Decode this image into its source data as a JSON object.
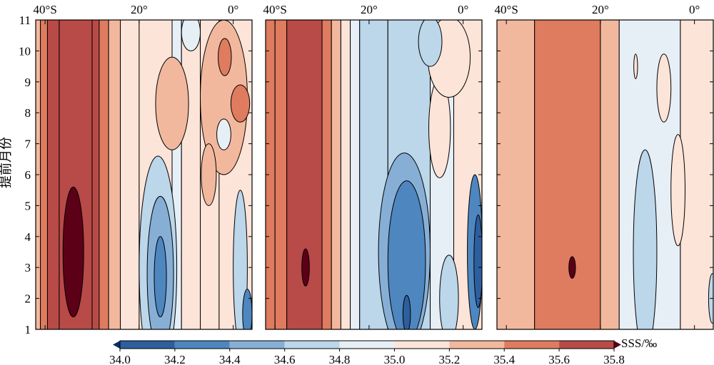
{
  "chart_data": {
    "type": "heatmap",
    "subtype": "filled-contour",
    "panels": [
      {
        "x_tick_labels": [
          "40°S",
          "20°",
          "0°"
        ],
        "x_tick_values": [
          -40,
          -20,
          0
        ],
        "xlim": [
          -42,
          4
        ],
        "y_tick_labels": [
          "1",
          "2",
          "3",
          "4",
          "5",
          "6",
          "7",
          "8",
          "9",
          "10",
          "11"
        ],
        "ylim": [
          1,
          11
        ],
        "ylabel": "提前月份",
        "bands": [
          {
            "x": [
              -42.0,
              -41.0
            ],
            "sss": 35.3
          },
          {
            "x": [
              -41.0,
              -39.5
            ],
            "sss": 35.5
          },
          {
            "x": [
              -39.5,
              -37.0
            ],
            "sss": 35.6
          },
          {
            "x": [
              -37.0,
              -30.0
            ],
            "sss": 35.7
          },
          {
            "x": [
              -30.0,
              -28.5
            ],
            "sss": 35.6
          },
          {
            "x": [
              -28.5,
              -26.5
            ],
            "sss": 35.5
          },
          {
            "x": [
              -26.5,
              -24.0
            ],
            "sss": 35.3
          },
          {
            "x": [
              -24.0,
              -20.0
            ],
            "sss": 35.1
          },
          {
            "x": [
              -20.0,
              -13.0
            ],
            "sss": 35.0
          },
          {
            "x": [
              -13.0,
              -11.0
            ],
            "sss": 34.9
          },
          {
            "x": [
              -11.0,
              -7.0
            ],
            "sss": 35.0
          },
          {
            "x": [
              -7.0,
              -3.0
            ],
            "sss": 35.1
          },
          {
            "x": [
              -3.0,
              4.0
            ],
            "sss": 35.1
          }
        ],
        "blobs": [
          {
            "cx": -34.0,
            "cy": 3.5,
            "rx": 2.2,
            "ry": 2.1,
            "sss": 35.8
          },
          {
            "cx": -16.0,
            "cy": 3.0,
            "rx": 4.0,
            "ry": 3.6,
            "sss": 34.7
          },
          {
            "cx": -15.5,
            "cy": 2.8,
            "rx": 2.8,
            "ry": 2.5,
            "sss": 34.5
          },
          {
            "cx": -15.5,
            "cy": 2.7,
            "rx": 1.3,
            "ry": 1.3,
            "sss": 34.3
          },
          {
            "cx": -9.0,
            "cy": 10.6,
            "rx": 2.0,
            "ry": 0.6,
            "sss": 34.9
          },
          {
            "cx": -13.0,
            "cy": 8.3,
            "rx": 3.5,
            "ry": 1.5,
            "sss": 35.2
          },
          {
            "cx": -2.0,
            "cy": 8.5,
            "rx": 5.0,
            "ry": 2.5,
            "sss": 35.3
          },
          {
            "cx": -1.8,
            "cy": 9.8,
            "rx": 1.4,
            "ry": 0.6,
            "sss": 35.4
          },
          {
            "cx": 1.5,
            "cy": 8.3,
            "rx": 2.0,
            "ry": 0.6,
            "sss": 35.4
          },
          {
            "cx": -5.2,
            "cy": 6.0,
            "rx": 1.6,
            "ry": 1.0,
            "sss": 35.3
          },
          {
            "cx": -2.0,
            "cy": 7.3,
            "rx": 1.5,
            "ry": 0.5,
            "sss": 34.9
          },
          {
            "cx": 1.5,
            "cy": 3.0,
            "rx": 1.5,
            "ry": 2.5,
            "sss": 34.6
          },
          {
            "cx": 3.0,
            "cy": 1.5,
            "rx": 1.0,
            "ry": 0.8,
            "sss": 34.3
          }
        ]
      },
      {
        "x_tick_labels": [
          "40°S",
          "20°",
          "0°"
        ],
        "x_tick_values": [
          -40,
          -20,
          0
        ],
        "xlim": [
          -42,
          4
        ],
        "y_tick_labels": [],
        "ylim": [
          1,
          11
        ],
        "bands": [
          {
            "x": [
              -42.0,
              -40.0
            ],
            "sss": 35.4
          },
          {
            "x": [
              -40.0,
              -37.5
            ],
            "sss": 35.5
          },
          {
            "x": [
              -37.5,
              -30.0
            ],
            "sss": 35.7
          },
          {
            "x": [
              -30.0,
              -28.0
            ],
            "sss": 35.5
          },
          {
            "x": [
              -28.0,
              -26.0
            ],
            "sss": 35.3
          },
          {
            "x": [
              -26.0,
              -24.0
            ],
            "sss": 35.1
          },
          {
            "x": [
              -24.0,
              -22.0
            ],
            "sss": 34.9
          },
          {
            "x": [
              -22.0,
              -16.0
            ],
            "sss": 34.7
          },
          {
            "x": [
              -16.0,
              -7.0
            ],
            "sss": 34.7
          },
          {
            "x": [
              -7.0,
              -2.0
            ],
            "sss": 34.9
          },
          {
            "x": [
              -2.0,
              4.0
            ],
            "sss": 35.0
          }
        ],
        "blobs": [
          {
            "cx": -33.5,
            "cy": 3.0,
            "rx": 0.8,
            "ry": 0.6,
            "sss": 35.8
          },
          {
            "cx": -12.5,
            "cy": 3.5,
            "rx": 5.5,
            "ry": 3.2,
            "sss": 34.5
          },
          {
            "cx": -12.0,
            "cy": 3.2,
            "rx": 4.0,
            "ry": 2.6,
            "sss": 34.3
          },
          {
            "cx": -12.0,
            "cy": 1.5,
            "rx": 0.8,
            "ry": 0.6,
            "sss": 34.1
          },
          {
            "cx": -3.0,
            "cy": 2.0,
            "rx": 2.0,
            "ry": 1.4,
            "sss": 34.7
          },
          {
            "cx": 2.5,
            "cy": 3.5,
            "rx": 1.6,
            "ry": 2.5,
            "sss": 34.3
          },
          {
            "cx": 3.2,
            "cy": 3.2,
            "rx": 0.9,
            "ry": 1.5,
            "sss": 34.1
          },
          {
            "cx": -5.0,
            "cy": 7.5,
            "rx": 2.3,
            "ry": 1.6,
            "sss": 35.1
          },
          {
            "cx": -3.0,
            "cy": 9.8,
            "rx": 4.5,
            "ry": 1.3,
            "sss": 35.1
          },
          {
            "cx": -7.0,
            "cy": 10.3,
            "rx": 2.5,
            "ry": 0.8,
            "sss": 34.7
          }
        ]
      },
      {
        "x_tick_labels": [
          "40°S",
          "20°",
          "0°"
        ],
        "x_tick_values": [
          -40,
          -20,
          0
        ],
        "xlim": [
          -42,
          4
        ],
        "y_tick_labels": [],
        "ylim": [
          1,
          11
        ],
        "bands": [
          {
            "x": [
              -42.0,
              -34.0
            ],
            "sss": 35.3
          },
          {
            "x": [
              -34.0,
              -20.0
            ],
            "sss": 35.5
          },
          {
            "x": [
              -20.0,
              -16.0
            ],
            "sss": 35.3
          },
          {
            "x": [
              -16.0,
              -3.0
            ],
            "sss": 34.9
          },
          {
            "x": [
              -3.0,
              4.0
            ],
            "sss": 35.1
          }
        ],
        "blobs": [
          {
            "cx": -26.0,
            "cy": 3.0,
            "rx": 0.7,
            "ry": 0.35,
            "sss": 35.8
          },
          {
            "cx": -10.5,
            "cy": 3.5,
            "rx": 2.5,
            "ry": 3.3,
            "sss": 34.7
          },
          {
            "cx": -6.5,
            "cy": 8.8,
            "rx": 1.5,
            "ry": 1.1,
            "sss": 35.1
          },
          {
            "cx": -3.5,
            "cy": 5.5,
            "rx": 1.5,
            "ry": 1.8,
            "sss": 35.1
          },
          {
            "cx": -12.5,
            "cy": 9.5,
            "rx": 0.4,
            "ry": 0.4,
            "sss": 35.1
          },
          {
            "cx": 3.8,
            "cy": 2.0,
            "rx": 0.8,
            "ry": 0.8,
            "sss": 34.7
          }
        ]
      }
    ],
    "colorbar": {
      "label": "SSS/‰",
      "ticks": [
        "34.0",
        "34.2",
        "34.4",
        "34.6",
        "34.8",
        "35.0",
        "35.2",
        "35.4",
        "35.6",
        "35.8"
      ],
      "tick_values": [
        34.0,
        34.2,
        34.4,
        34.6,
        34.8,
        35.0,
        35.2,
        35.4,
        35.6,
        35.8
      ],
      "colors": [
        "#0a2f66",
        "#2d5f9e",
        "#4e86bf",
        "#87afd6",
        "#bcd6ea",
        "#e7eff6",
        "#fde4d8",
        "#f2b89d",
        "#df7b5f",
        "#b84a47",
        "#8e0c1e",
        "#5c0018"
      ]
    }
  }
}
